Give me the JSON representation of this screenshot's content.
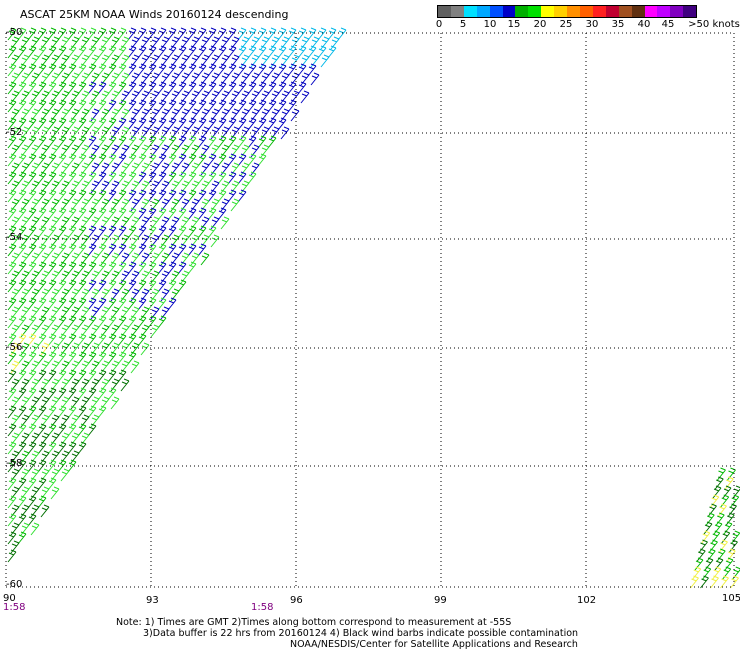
{
  "title": "ASCAT 25KM NOAA Winds 20160124 descending",
  "colorbar": {
    "labels": [
      "0",
      "5",
      "10",
      "15",
      "20",
      "25",
      "30",
      "35",
      "40",
      "45",
      ">50 knots"
    ],
    "colors": [
      "#606060",
      "#808080",
      "#00e0ff",
      "#00a8ff",
      "#0050ff",
      "#0000c8",
      "#00b000",
      "#00e000",
      "#ffff00",
      "#ffd000",
      "#ff9000",
      "#ff6000",
      "#ff2020",
      "#c00030",
      "#a05020",
      "#603010",
      "#ff00ff",
      "#c000ff",
      "#8000c0",
      "#400080"
    ]
  },
  "axes": {
    "lat_labels": [
      "-50",
      "-52",
      "-54",
      "-56",
      "-58",
      "-60"
    ],
    "lon_labels": [
      "90",
      "93",
      "96",
      "99",
      "102",
      "105"
    ]
  },
  "times": {
    "left": "1:58",
    "mid": "1:58"
  },
  "notes": {
    "line1": "Note: 1) Times are GMT 2)Times along bottom correspond to measurement at -55S",
    "line2": "3)Data buffer is 22 hrs from 20160124 4) Black wind barbs indicate possible contamination",
    "line3": "NOAA/NESDIS/Center for Satellite Applications and Research"
  },
  "palette": {
    "blue": "#0000c0",
    "cyan": "#00b8e8",
    "green": "#00b800",
    "lime": "#30e030",
    "dkgreen": "#007000",
    "yellow": "#f0f040"
  }
}
